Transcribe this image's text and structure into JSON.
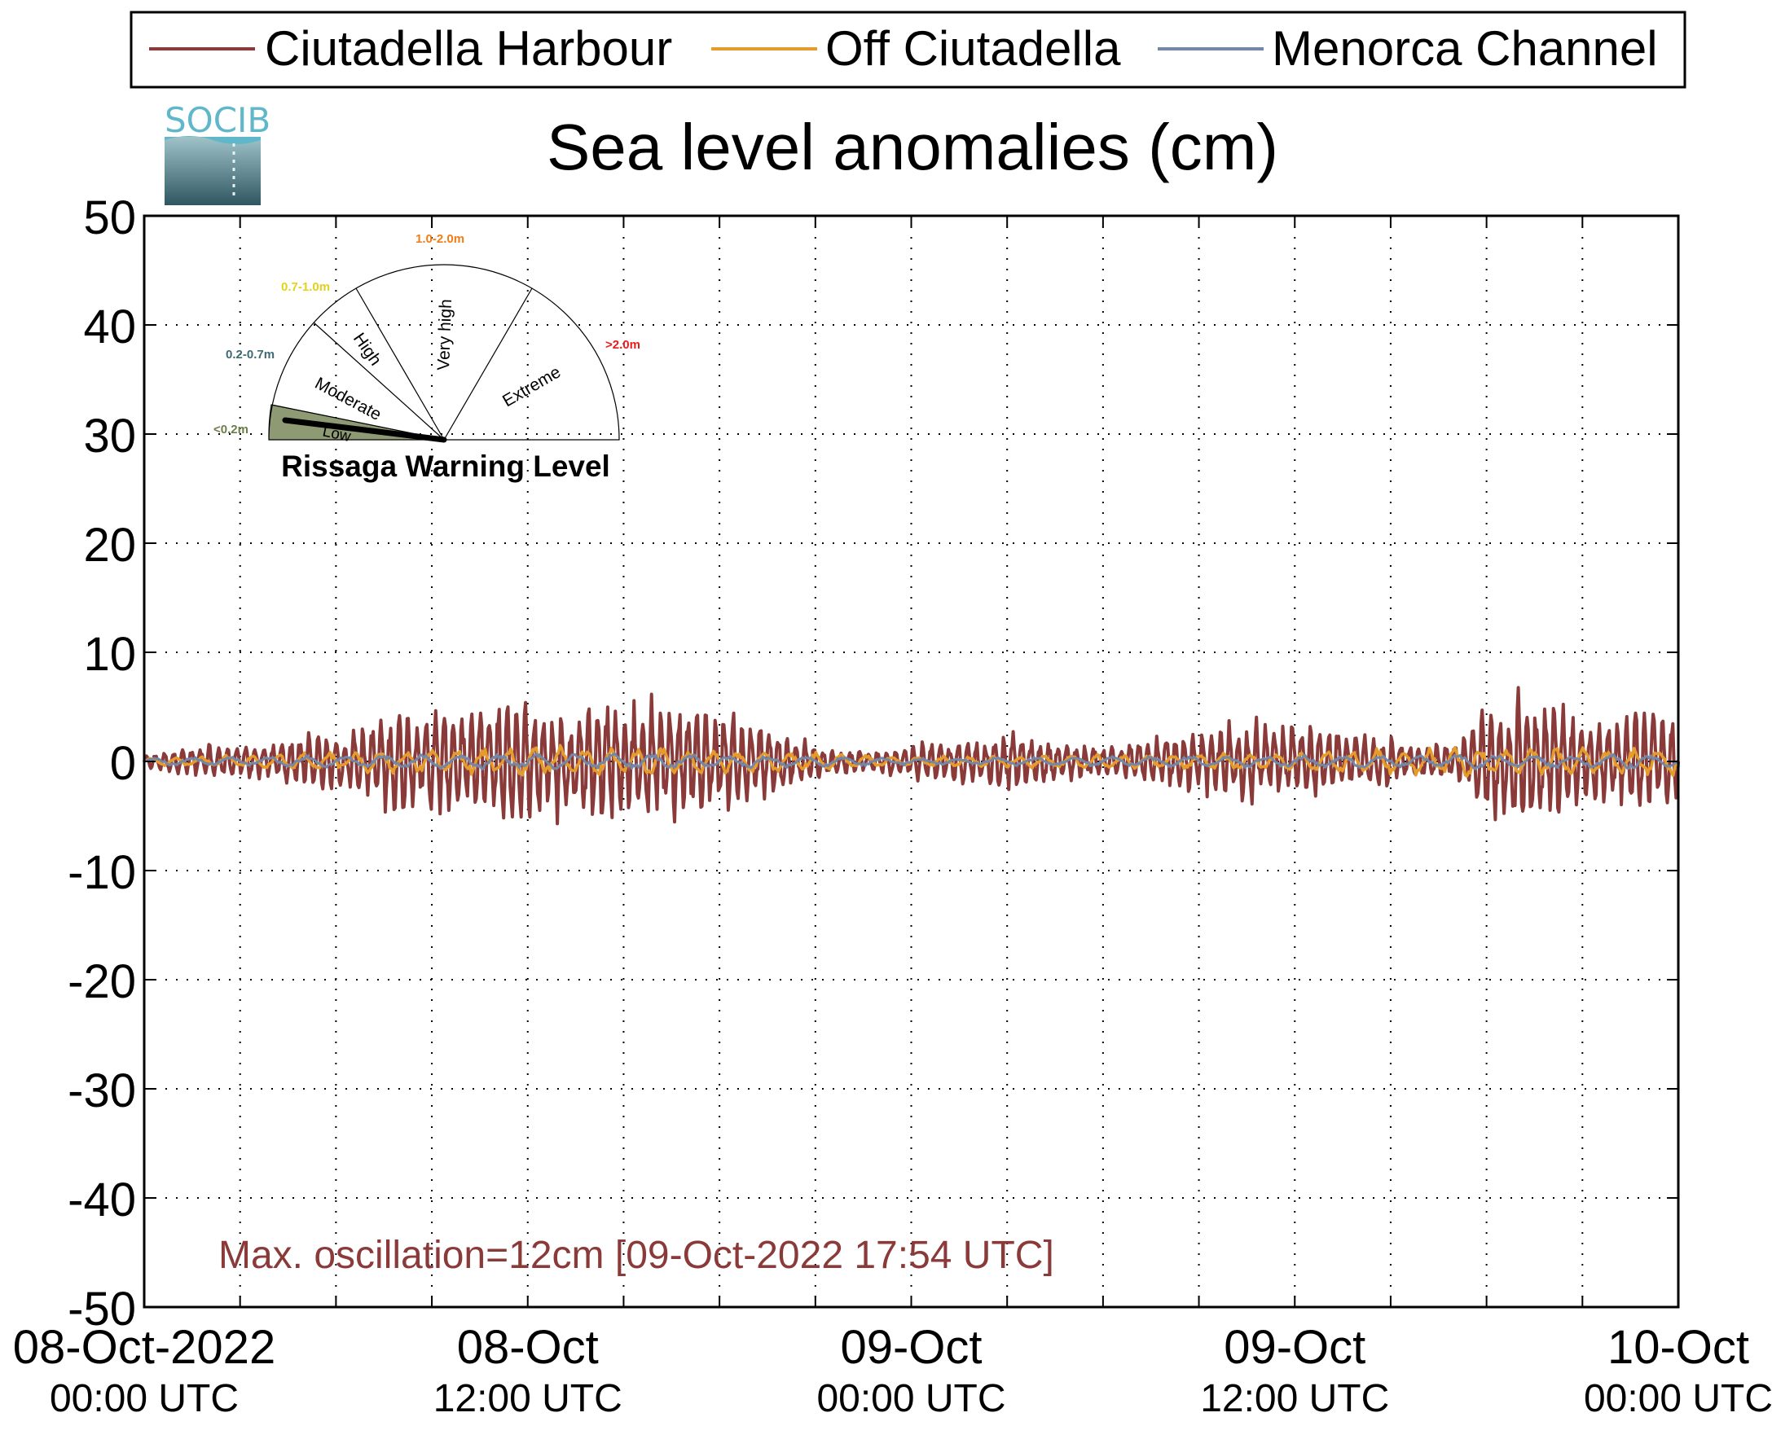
{
  "chart_data": {
    "type": "line",
    "title": "Sea level anomalies (cm)",
    "logo_text": "SOCIB",
    "ylim": [
      -50,
      50
    ],
    "y_ticks": [
      50,
      40,
      30,
      20,
      10,
      0,
      -10,
      -20,
      -30,
      -40,
      -50
    ],
    "y_tick_labels": [
      "50",
      "40",
      "30",
      "20",
      "10",
      "0",
      "-10",
      "-20",
      "-30",
      "-40",
      "-50"
    ],
    "xlim_hours": [
      0,
      48
    ],
    "x_ticks": [
      {
        "top": "08-Oct-2022",
        "bottom": "00:00 UTC"
      },
      {
        "top": "08-Oct",
        "bottom": "12:00 UTC"
      },
      {
        "top": "09-Oct",
        "bottom": "00:00 UTC"
      },
      {
        "top": "09-Oct",
        "bottom": "12:00 UTC"
      },
      {
        "top": "10-Oct",
        "bottom": "00:00 UTC"
      }
    ],
    "grid": true,
    "legend_position": "top",
    "series": [
      {
        "name": "Ciutadella Harbour",
        "color": "#8b3a3a",
        "envelope_hours": [
          0,
          1,
          2,
          3,
          4,
          5,
          6,
          7,
          8,
          9,
          10,
          11,
          12,
          13,
          14,
          15,
          16,
          17,
          18,
          19,
          20,
          21,
          22,
          23,
          24,
          25,
          26,
          27,
          28,
          29,
          30,
          31,
          32,
          33,
          34,
          35,
          36,
          37,
          38,
          39,
          40,
          41,
          42,
          43,
          44,
          45,
          46,
          47,
          48
        ],
        "envelope_cm": [
          0.5,
          1.0,
          1.5,
          1.5,
          1.5,
          2.5,
          2.5,
          3.5,
          4.5,
          4.5,
          4.5,
          5.0,
          5.5,
          5.0,
          5.5,
          5.5,
          5.5,
          5.0,
          4.5,
          3.5,
          2.5,
          1.5,
          1.0,
          1.0,
          1.5,
          2.0,
          2.0,
          2.5,
          2.0,
          1.5,
          1.5,
          1.5,
          2.5,
          2.5,
          3.5,
          3.5,
          3.5,
          3.0,
          2.5,
          2.0,
          1.5,
          1.5,
          4.5,
          6.0,
          5.0,
          3.5,
          4.0,
          4.5,
          4.5
        ],
        "max_cm": 5.8,
        "min_cm": -6.3
      },
      {
        "name": "Off Ciutadella",
        "color": "#e69b2d",
        "envelope_hours": [
          0,
          6,
          12,
          18,
          24,
          30,
          36,
          42,
          48
        ],
        "envelope_cm": [
          0.3,
          0.8,
          1.3,
          1.1,
          0.4,
          0.6,
          0.8,
          1.3,
          1.2
        ]
      },
      {
        "name": "Menorca Channel",
        "color": "#7587a6",
        "envelope_hours": [
          0,
          6,
          12,
          18,
          24,
          30,
          36,
          42,
          48
        ],
        "envelope_cm": [
          0.3,
          0.5,
          0.7,
          0.6,
          0.3,
          0.4,
          0.5,
          0.6,
          0.6
        ]
      }
    ],
    "annotation": {
      "text": "Max. oscillation=12cm [09-Oct-2022 17:54 UTC]",
      "color": "#8b3a3a"
    },
    "warning_gauge": {
      "title": "Rissaga Warning Level",
      "needle_level": "Low",
      "sectors": [
        {
          "label": "Low",
          "range": "<0.2m",
          "range_color": "#6e7e4a",
          "fill": "#8e9a74"
        },
        {
          "label": "Moderate",
          "range": "0.2-0.7m",
          "range_color": "#3f6a73",
          "fill": "none"
        },
        {
          "label": "High",
          "range": "0.7-1.0m",
          "range_color": "#e3d21b",
          "fill": "none"
        },
        {
          "label": "Very high",
          "range": "1.0-2.0m",
          "range_color": "#f07d16",
          "fill": "none"
        },
        {
          "label": "Extreme",
          "range": ">2.0m",
          "range_color": "#e81c1c",
          "fill": "none"
        }
      ]
    }
  }
}
